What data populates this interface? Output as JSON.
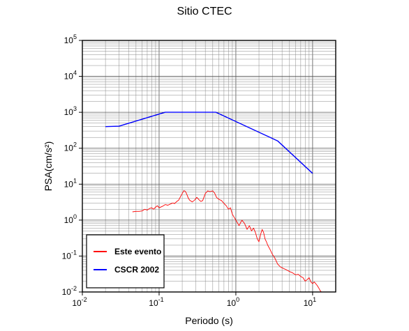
{
  "chart_data": {
    "type": "line",
    "title": "Sitio CTEC",
    "xlabel": "Periodo (s)",
    "ylabel": "PSA(cm/s²)",
    "xscale": "log",
    "yscale": "log",
    "xlim": [
      0.01,
      20
    ],
    "ylim": [
      0.01,
      100000
    ],
    "x_ticks": [
      {
        "base": "10",
        "exp": "-2"
      },
      {
        "base": "10",
        "exp": "-1"
      },
      {
        "base": "10",
        "exp": "0"
      },
      {
        "base": "10",
        "exp": "1"
      }
    ],
    "y_ticks": [
      {
        "base": "10",
        "exp": "-2"
      },
      {
        "base": "10",
        "exp": "-1"
      },
      {
        "base": "10",
        "exp": "0"
      },
      {
        "base": "10",
        "exp": "1"
      },
      {
        "base": "10",
        "exp": "2"
      },
      {
        "base": "10",
        "exp": "3"
      },
      {
        "base": "10",
        "exp": "4"
      },
      {
        "base": "10",
        "exp": "5"
      }
    ],
    "grid": true,
    "legend_position": "bottom-left",
    "series": [
      {
        "name": "Este evento",
        "color": "#ff0000",
        "x": [
          0.045,
          0.05,
          0.055,
          0.06,
          0.065,
          0.07,
          0.075,
          0.08,
          0.085,
          0.09,
          0.095,
          0.1,
          0.11,
          0.12,
          0.13,
          0.14,
          0.15,
          0.16,
          0.17,
          0.18,
          0.19,
          0.2,
          0.21,
          0.22,
          0.23,
          0.24,
          0.25,
          0.27,
          0.29,
          0.31,
          0.33,
          0.35,
          0.37,
          0.4,
          0.43,
          0.46,
          0.5,
          0.53,
          0.56,
          0.6,
          0.65,
          0.7,
          0.75,
          0.8,
          0.85,
          0.9,
          0.95,
          1.0,
          1.1,
          1.2,
          1.3,
          1.4,
          1.5,
          1.6,
          1.7,
          1.8,
          1.9,
          2.0,
          2.1,
          2.2,
          2.3,
          2.4,
          2.5,
          2.6,
          2.8,
          3.0,
          3.2,
          3.5,
          3.8,
          4.0,
          4.5,
          5.0,
          5.5,
          6.0,
          6.5,
          7.0,
          7.5,
          8.0,
          8.5,
          9.0,
          9.5,
          10.0,
          10.5,
          11.0,
          11.5,
          12.0,
          12.5,
          13.0
        ],
        "values": [
          1.7,
          1.75,
          1.75,
          1.8,
          2.0,
          1.9,
          2.1,
          2.2,
          2.0,
          2.3,
          2.5,
          2.2,
          2.4,
          2.7,
          2.6,
          2.8,
          3.0,
          2.9,
          3.3,
          3.6,
          4.5,
          5.5,
          6.6,
          6.3,
          5.2,
          4.1,
          3.6,
          3.2,
          3.6,
          4.3,
          3.7,
          3.3,
          3.5,
          5.5,
          6.5,
          6.2,
          6.5,
          5.6,
          4.3,
          3.8,
          3.5,
          2.9,
          2.5,
          2.0,
          2.2,
          1.45,
          1.2,
          1.0,
          0.7,
          1.0,
          0.8,
          0.55,
          0.7,
          0.5,
          0.6,
          0.45,
          0.3,
          0.25,
          0.4,
          0.55,
          0.45,
          0.3,
          0.25,
          0.2,
          0.15,
          0.11,
          0.09,
          0.06,
          0.05,
          0.047,
          0.042,
          0.037,
          0.034,
          0.03,
          0.031,
          0.027,
          0.025,
          0.02,
          0.022,
          0.025,
          0.019,
          0.017,
          0.019,
          0.017,
          0.015,
          0.013,
          0.011,
          0.01
        ]
      },
      {
        "name": "CSCR 2002",
        "color": "#0000ff",
        "x": [
          0.02,
          0.03,
          0.12,
          0.55,
          3.5,
          10.0
        ],
        "values": [
          400,
          410,
          1000,
          1000,
          160,
          20
        ]
      }
    ]
  }
}
